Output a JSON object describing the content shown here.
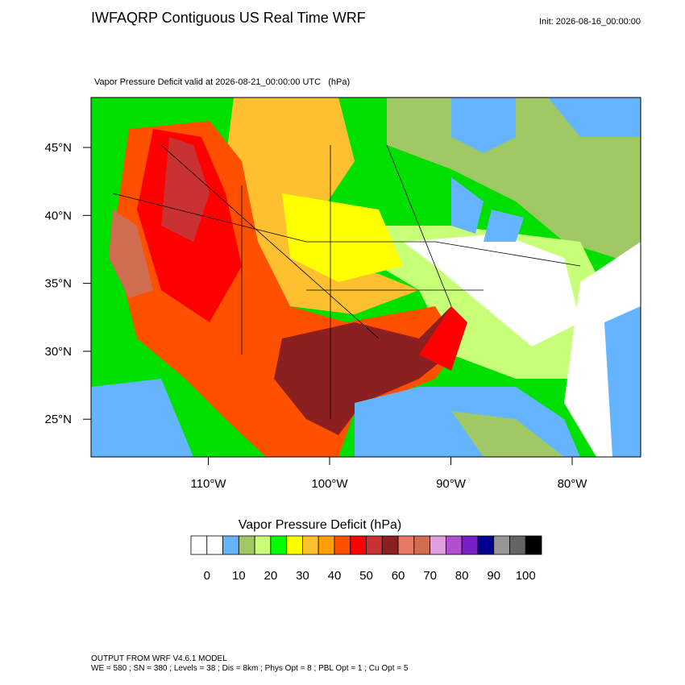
{
  "header": {
    "title": "IWFAQRP Contiguous US Real Time WRF",
    "init": "Init: 2026-08-16_00:00:00",
    "subtitle": "Vapor Pressure Deficit valid at 2026-08-21_00:00:00 UTC   (hPa)"
  },
  "map": {
    "lat_ticks": [
      {
        "value": 45,
        "label": "45°N"
      },
      {
        "value": 40,
        "label": "40°N"
      },
      {
        "value": 35,
        "label": "35°N"
      },
      {
        "value": 30,
        "label": "30°N"
      },
      {
        "value": 25,
        "label": "25°N"
      }
    ],
    "lon_ticks": [
      {
        "value": -110,
        "label": "110°W"
      },
      {
        "value": -100,
        "label": "100°W"
      },
      {
        "value": -90,
        "label": "90°W"
      },
      {
        "value": -80,
        "label": "80°W"
      }
    ]
  },
  "colorbar": {
    "title": "Vapor Pressure Deficit  (hPa)",
    "level_step": 5,
    "colors": [
      "#ffffff",
      "#ffffff",
      "#64b4ff",
      "#a0c864",
      "#c8ff78",
      "#00ff00",
      "#ffff00",
      "#ffc030",
      "#ffa000",
      "#ff5000",
      "#ff0000",
      "#c83232",
      "#8c2020",
      "#e87864",
      "#d06c50",
      "#e0a0e0",
      "#b050d0",
      "#7820c8",
      "#000090",
      "#969696",
      "#646464",
      "#000000"
    ],
    "ticks": [
      0,
      10,
      20,
      30,
      40,
      50,
      60,
      70,
      80,
      90,
      100
    ]
  },
  "footer": {
    "line1": "OUTPUT FROM WRF V4.6.1 MODEL",
    "line2": "WE = 580 ; SN = 380 ; Levels = 38 ; Dis = 8km ; Phys Opt = 8 ; PBL Opt = 1 ; Cu Opt = 5"
  }
}
